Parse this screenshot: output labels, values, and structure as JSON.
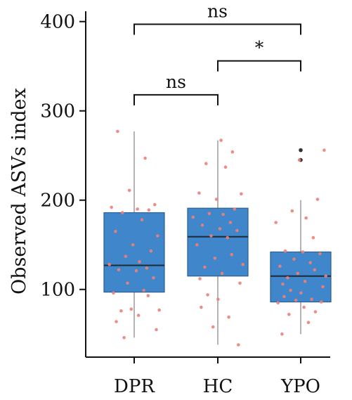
{
  "chart_data": {
    "type": "box",
    "ylabel": "Observed ASVs index",
    "xlabel": "",
    "ylim": [
      25,
      410
    ],
    "yticks": [
      100,
      200,
      300,
      400
    ],
    "categories": [
      "DPR",
      "HC",
      "YPO"
    ],
    "colors": {
      "box": "#3f86cb",
      "box_edge": "#2d5f8f",
      "median": "#1e2a36",
      "points": "#f07f75",
      "outlier": "#333333",
      "whisker": "#9a9a9a"
    },
    "boxes": [
      {
        "name": "DPR",
        "whislo": 46,
        "q1": 97,
        "median": 127,
        "q3": 186,
        "whishi": 277,
        "fliers": []
      },
      {
        "name": "HC",
        "whislo": 38,
        "q1": 115,
        "median": 159,
        "q3": 191,
        "whishi": 267,
        "fliers": []
      },
      {
        "name": "YPO",
        "whislo": 50,
        "q1": 86,
        "median": 115,
        "q3": 142,
        "whishi": 200,
        "fliers": [
          256,
          245
        ]
      }
    ],
    "points": [
      [
        277,
        247,
        211,
        195,
        192,
        190,
        189,
        186,
        178,
        165,
        160,
        150,
        143,
        137,
        131,
        128,
        124,
        122,
        121,
        113,
        107,
        99,
        96,
        93,
        78,
        77,
        76,
        71,
        64,
        55,
        46
      ],
      [
        267,
        254,
        241,
        237,
        208,
        207,
        201,
        190,
        185,
        184,
        181,
        175,
        172,
        168,
        166,
        160,
        158,
        150,
        139,
        135,
        128,
        125,
        118,
        112,
        107,
        94,
        89,
        80,
        69,
        58,
        38
      ],
      [
        256,
        245,
        201,
        188,
        180,
        175,
        158,
        143,
        142,
        140,
        134,
        130,
        126,
        122,
        118,
        115,
        113,
        109,
        106,
        103,
        99,
        96,
        92,
        89,
        88,
        86,
        85,
        80,
        75,
        72,
        63,
        50
      ]
    ],
    "comparisons": [
      {
        "groups": [
          "DPR",
          "YPO"
        ],
        "label": "ns",
        "y": 397
      },
      {
        "groups": [
          "HC",
          "YPO"
        ],
        "label": "*",
        "y": 356
      },
      {
        "groups": [
          "DPR",
          "HC"
        ],
        "label": "ns",
        "y": 318
      }
    ]
  }
}
